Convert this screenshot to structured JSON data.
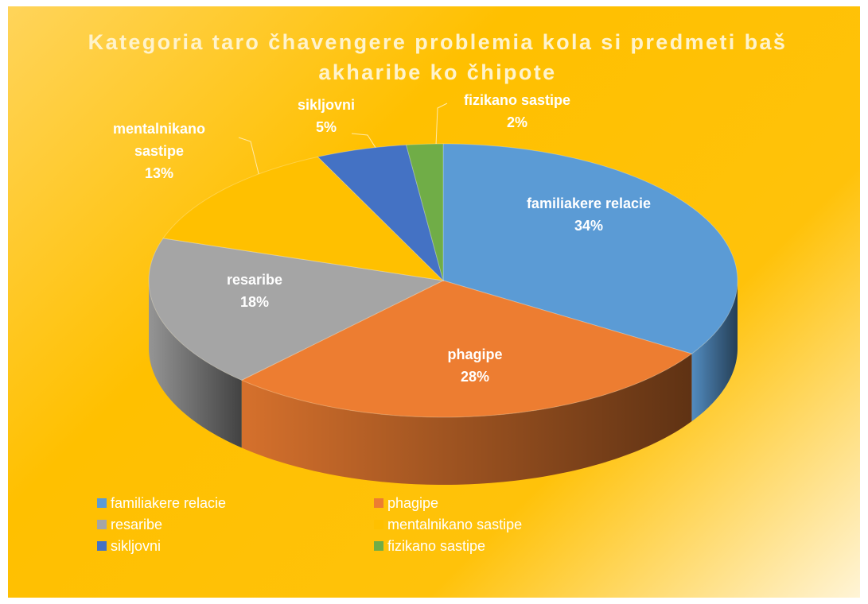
{
  "chart_data": {
    "type": "pie3d",
    "title": "Kategoria taro čhavengere problemia kola si predmeti baš akharibe ko čhipote",
    "categories": [
      "familiakere relacie",
      "phagipe",
      "resaribe",
      "mentalnikano sastipe",
      "sikljovni",
      "fizikano sastipe"
    ],
    "values": [
      34,
      28,
      18,
      13,
      5,
      2
    ],
    "value_labels": [
      "34%",
      "28%",
      "18%",
      "13%",
      "5%",
      "2%"
    ],
    "colors": [
      "#5b9bd5",
      "#ed7d31",
      "#a5a5a5",
      "#ffc000",
      "#4472c4",
      "#70ad47"
    ],
    "legend": "bottom"
  }
}
